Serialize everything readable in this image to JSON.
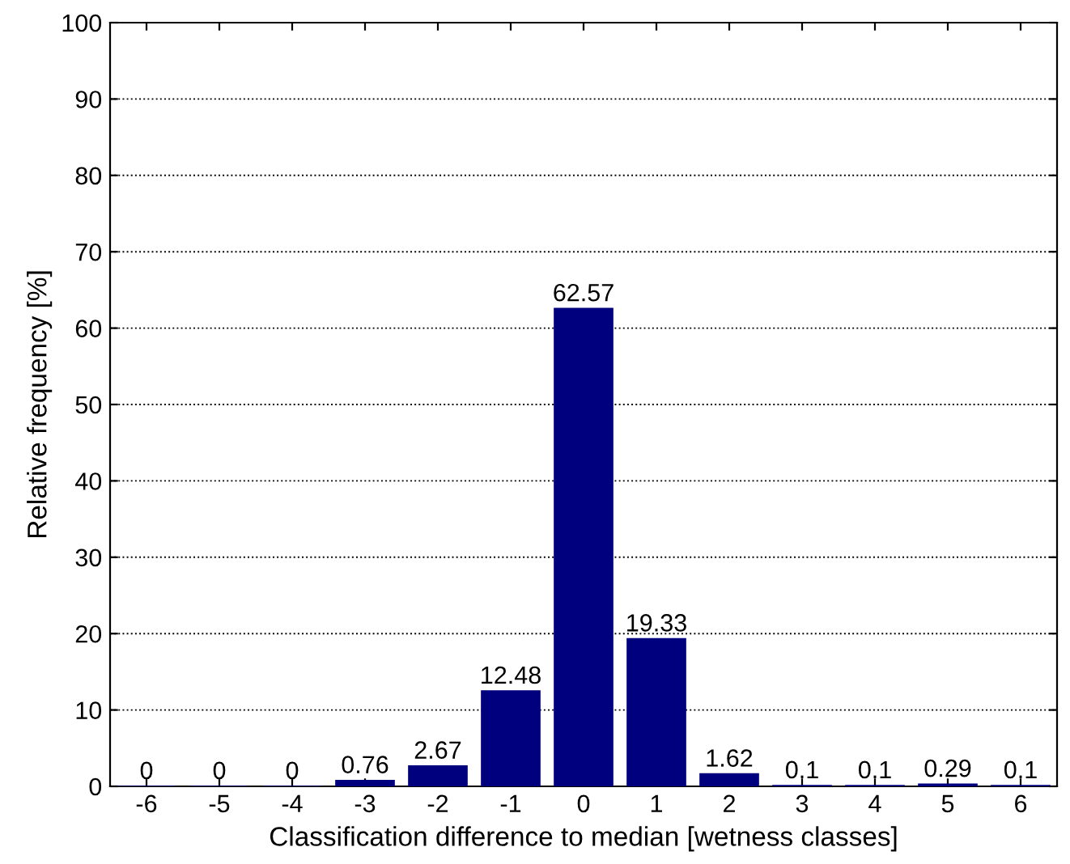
{
  "chart_data": {
    "type": "bar",
    "xlabel": "Classification difference to median [wetness classes]",
    "ylabel": "Relative frequency [%]",
    "categories": [
      "-6",
      "-5",
      "-4",
      "-3",
      "-2",
      "-1",
      "0",
      "1",
      "2",
      "3",
      "4",
      "5",
      "6"
    ],
    "values": [
      0,
      0,
      0,
      0.76,
      2.67,
      12.48,
      62.57,
      19.33,
      1.62,
      0.1,
      0.1,
      0.29,
      0.1
    ],
    "color": "#00007f",
    "ylim": [
      0,
      100
    ],
    "yticks": [
      0,
      10,
      20,
      30,
      40,
      50,
      60,
      70,
      80,
      90,
      100
    ],
    "grid": "y",
    "data_labels": true
  }
}
